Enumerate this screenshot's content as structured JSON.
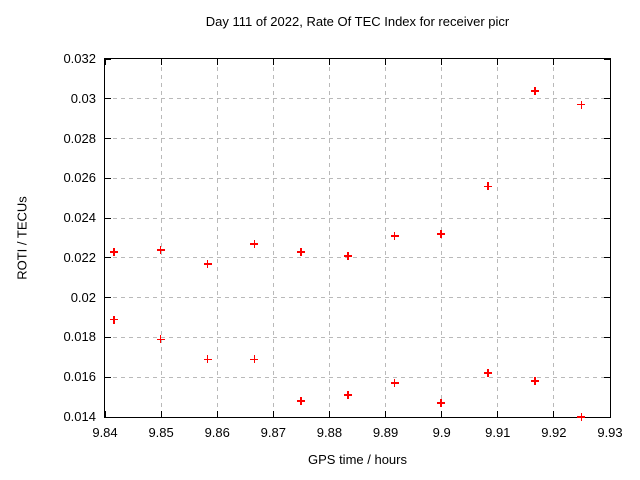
{
  "colors": {
    "point": "#ff0000",
    "grid": "#b9b9b9",
    "axis": "#000000",
    "background": "#ffffff"
  },
  "chart_data": {
    "type": "scatter",
    "title": "Day 111 of 2022, Rate Of TEC Index for receiver picr",
    "xlabel": "GPS time / hours",
    "ylabel": "ROTI / TECUs",
    "xlim": [
      9.84,
      9.93
    ],
    "ylim": [
      0.014,
      0.032
    ],
    "xticks": [
      9.84,
      9.85,
      9.86,
      9.87,
      9.88,
      9.89,
      9.9,
      9.91,
      9.92,
      9.93
    ],
    "xtick_labels": [
      "9.84",
      "9.85",
      "9.86",
      "9.87",
      "9.88",
      "9.89",
      "9.9",
      "9.91",
      "9.92",
      "9.93"
    ],
    "yticks": [
      0.014,
      0.016,
      0.018,
      0.02,
      0.022,
      0.024,
      0.026,
      0.028,
      0.03,
      0.032
    ],
    "ytick_labels": [
      "0.014",
      "0.016",
      "0.018",
      "0.02",
      "0.022",
      "0.024",
      "0.026",
      "0.028",
      "0.03",
      "0.032"
    ],
    "grid": true,
    "legend": "none",
    "marker": "plus",
    "points": [
      [
        9.8416,
        0.0223
      ],
      [
        9.8416,
        0.0189
      ],
      [
        9.8499,
        0.0224
      ],
      [
        9.8499,
        0.0179
      ],
      [
        9.8583,
        0.0217
      ],
      [
        9.8583,
        0.0169
      ],
      [
        9.8666,
        0.0227
      ],
      [
        9.8666,
        0.0169
      ],
      [
        9.8749,
        0.0223
      ],
      [
        9.8749,
        0.0148
      ],
      [
        9.8833,
        0.0221
      ],
      [
        9.8833,
        0.0151
      ],
      [
        9.8916,
        0.0231
      ],
      [
        9.8916,
        0.0157
      ],
      [
        9.8999,
        0.0232
      ],
      [
        9.8999,
        0.0147
      ],
      [
        9.9083,
        0.0256
      ],
      [
        9.9083,
        0.0162
      ],
      [
        9.9166,
        0.0304
      ],
      [
        9.9166,
        0.0158
      ],
      [
        9.9249,
        0.0297
      ],
      [
        9.9249,
        0.014
      ]
    ]
  }
}
